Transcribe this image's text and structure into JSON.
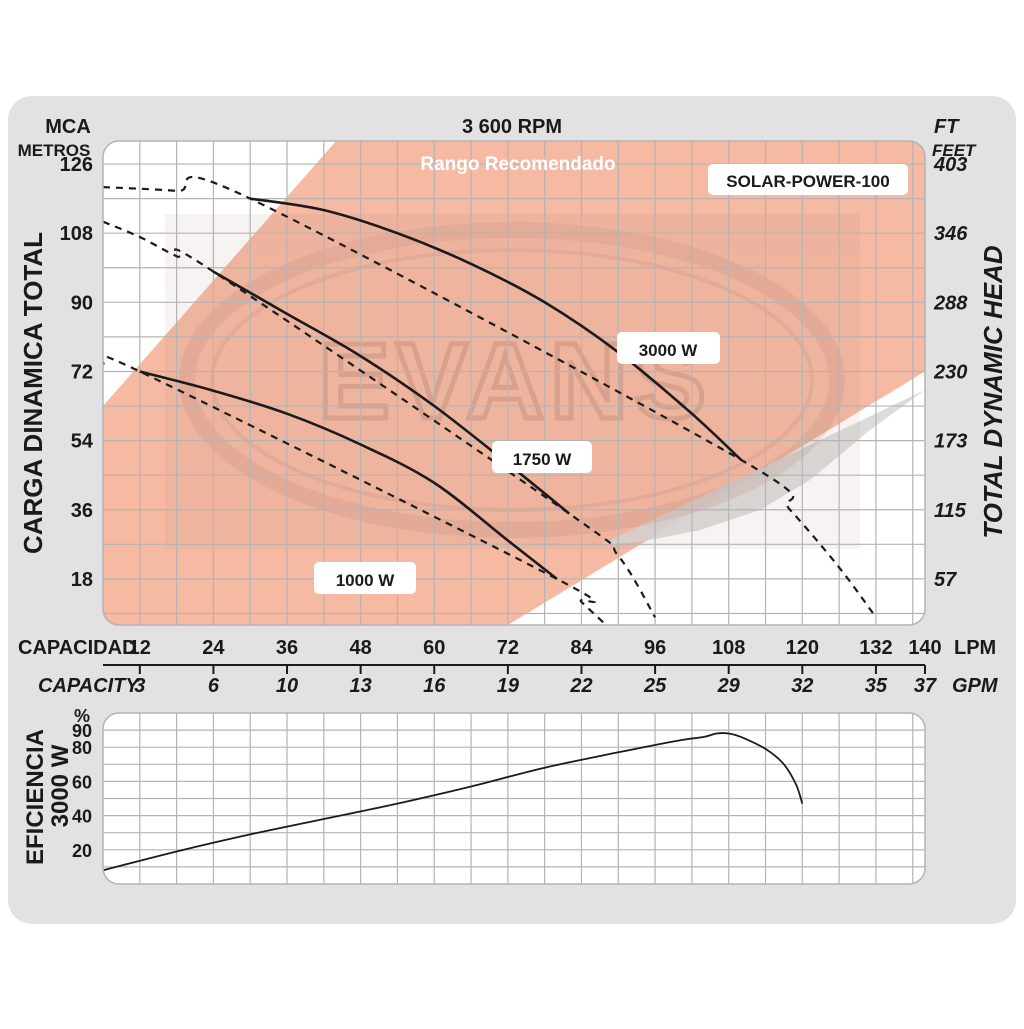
{
  "colors": {
    "frame": "#e2e2e4",
    "grid": "#b4b4b4",
    "recommended_range": "#f6b9a2",
    "curve": "#1b1b1b",
    "watermark": "#b48a7e"
  },
  "labels": {
    "left_unit_1": "MCA",
    "left_unit_2": "METROS",
    "right_unit_1": "FT",
    "right_unit_2": "FEET",
    "rpm": "3 600 RPM",
    "range": "Rango  Recomendado",
    "model": "SOLAR-POWER-100",
    "left_axis_title": "CARGA  DINAMICA  TOTAL",
    "right_axis_title": "TOTAL  DYNAMIC  HEAD",
    "capacidad": "CAPACIDAD",
    "capacity": "CAPACITY",
    "lpm": "LPM",
    "gpm": "GPM",
    "watermark": "EVANS",
    "eff_title_1": "EFICIENCIA",
    "eff_title_2": "3000 W",
    "eff_unit": "%"
  },
  "chart_data": [
    {
      "type": "line",
      "title": "3 600 RPM",
      "xlabel": "CAPACIDAD",
      "x_unit": "LPM",
      "ylabel": "CARGA  DINAMICA  TOTAL",
      "y_unit": "MCA",
      "xlim": [
        6,
        140
      ],
      "ylim": [
        6,
        132
      ],
      "x_ticks": [
        12,
        24,
        36,
        48,
        60,
        72,
        84,
        96,
        108,
        120,
        132,
        140
      ],
      "x_ticks_secondary_gpm": [
        "3",
        "6",
        "10",
        "13",
        "16",
        "19",
        "22",
        "25",
        "29",
        "32",
        "35",
        "37"
      ],
      "y_ticks": [
        18,
        36,
        54,
        72,
        90,
        108,
        126
      ],
      "y_ticks_secondary_ft": [
        "57",
        "115",
        "173",
        "230",
        "288",
        "346",
        "403"
      ],
      "grid": true,
      "recommended_range": {
        "label": "Rango  Recomendado",
        "boundary": [
          [
            6,
            63
          ],
          [
            44,
            132
          ],
          [
            140,
            132
          ],
          [
            140,
            72
          ],
          [
            72,
            6
          ],
          [
            6,
            6
          ]
        ]
      },
      "series": [
        {
          "name": "3000 W",
          "solid": [
            [
              30,
              117
            ],
            [
              42,
              114
            ],
            [
              54,
              108
            ],
            [
              66,
              100
            ],
            [
              78,
              90
            ],
            [
              90,
              77
            ],
            [
              102,
              61
            ],
            [
              110,
              49
            ]
          ],
          "dashed": [
            [
              6,
              120
            ],
            [
              18,
              119
            ],
            [
              30,
              117
            ],
            [
              110,
              49
            ],
            [
              118,
              36
            ],
            [
              126,
              21
            ],
            [
              132,
              8
            ]
          ]
        },
        {
          "name": "1750 W",
          "solid": [
            [
              24,
              98
            ],
            [
              36,
              87
            ],
            [
              48,
              76
            ],
            [
              60,
              63
            ],
            [
              72,
              48
            ],
            [
              82,
              35
            ]
          ],
          "dashed": [
            [
              6,
              111
            ],
            [
              12,
              107
            ],
            [
              18,
              102
            ],
            [
              24,
              98
            ],
            [
              82,
              35
            ],
            [
              90,
              24
            ],
            [
              96,
              8
            ]
          ]
        },
        {
          "name": "1000 W",
          "solid": [
            [
              12,
              72
            ],
            [
              24,
              67
            ],
            [
              36,
              61
            ],
            [
              48,
              53
            ],
            [
              60,
              43
            ],
            [
              72,
              28
            ],
            [
              80,
              18
            ]
          ],
          "dashed": [
            [
              6,
              74
            ],
            [
              12,
              72
            ],
            [
              80,
              18
            ],
            [
              84,
              12
            ],
            [
              88,
              6
            ]
          ]
        }
      ]
    },
    {
      "type": "line",
      "title": "",
      "xlabel": "",
      "ylabel": "EFICIENCIA 3000 W",
      "y_unit": "%",
      "xlim": [
        6,
        140
      ],
      "ylim": [
        0,
        100
      ],
      "y_ticks": [
        20,
        40,
        60,
        80,
        90
      ],
      "grid": true,
      "series": [
        {
          "name": "3000 W",
          "points": [
            [
              6,
              8
            ],
            [
              18,
              19
            ],
            [
              30,
              29
            ],
            [
              42,
              38
            ],
            [
              54,
              47
            ],
            [
              66,
              57
            ],
            [
              78,
              68
            ],
            [
              90,
              77
            ],
            [
              100,
              84
            ],
            [
              104,
              86
            ],
            [
              106,
              88
            ],
            [
              108,
              88
            ],
            [
              110,
              86
            ],
            [
              114,
              79
            ],
            [
              117,
              70
            ],
            [
              119,
              58
            ],
            [
              120,
              47
            ]
          ]
        }
      ]
    }
  ]
}
